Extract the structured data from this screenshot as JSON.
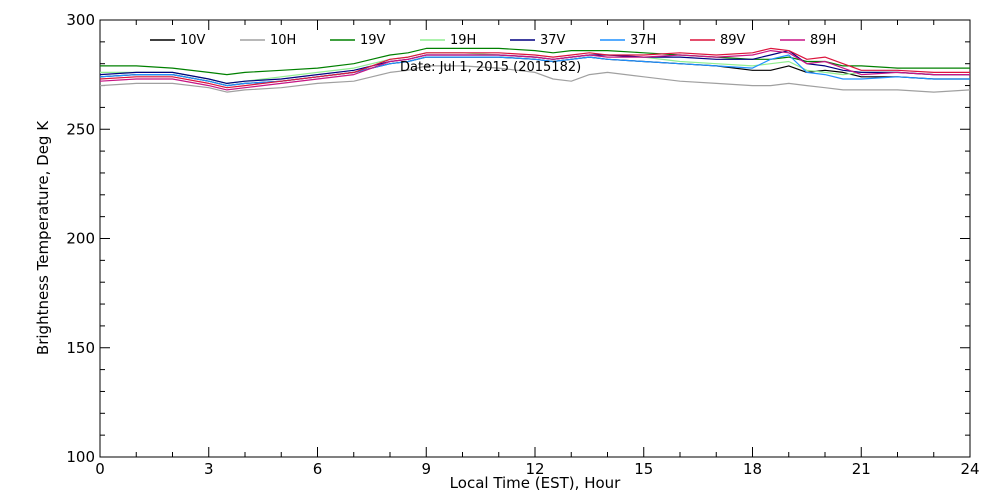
{
  "chart_data": {
    "type": "line",
    "title": "",
    "annotation": "Date: Jul  1, 2015 (2015182)",
    "xlabel": "Local Time (EST), Hour",
    "ylabel": "Brightness Temperature, Deg  K",
    "xlim": [
      0,
      24
    ],
    "ylim": [
      100,
      300
    ],
    "x_ticks": [
      0,
      3,
      6,
      9,
      12,
      15,
      18,
      21,
      24
    ],
    "y_ticks": [
      100,
      150,
      200,
      250,
      300
    ],
    "grid": false,
    "legend_position": "top",
    "x": [
      0,
      1,
      2,
      3,
      3.5,
      4,
      5,
      6,
      7,
      7.5,
      8,
      8.5,
      9,
      10,
      11,
      12,
      12.5,
      13,
      13.5,
      14,
      15,
      16,
      17,
      18,
      18.5,
      19,
      19.5,
      20,
      20.5,
      21,
      22,
      23,
      24
    ],
    "series": [
      {
        "name": "10V",
        "color": "#000000",
        "values": [
          274,
          275,
          275,
          272,
          270,
          271,
          272,
          274,
          276,
          278,
          280,
          281,
          283,
          283,
          283,
          282,
          281,
          282,
          283,
          282,
          281,
          280,
          279,
          277,
          277,
          279,
          276,
          277,
          276,
          274,
          274,
          273,
          273
        ]
      },
      {
        "name": "10H",
        "color": "#a0a0a0",
        "values": [
          270,
          271,
          271,
          269,
          267,
          268,
          269,
          271,
          272,
          274,
          276,
          277,
          279,
          279,
          278,
          276,
          273,
          272,
          275,
          276,
          274,
          272,
          271,
          270,
          270,
          271,
          270,
          269,
          268,
          268,
          268,
          267,
          268
        ]
      },
      {
        "name": "19V",
        "color": "#008000",
        "values": [
          279,
          279,
          278,
          276,
          275,
          276,
          277,
          278,
          280,
          282,
          284,
          285,
          287,
          287,
          287,
          286,
          285,
          286,
          286,
          286,
          285,
          284,
          283,
          282,
          282,
          283,
          281,
          281,
          279,
          279,
          278,
          278,
          278
        ]
      },
      {
        "name": "19H",
        "color": "#90ee90",
        "values": [
          276,
          276,
          276,
          273,
          271,
          272,
          274,
          276,
          278,
          280,
          282,
          283,
          285,
          285,
          284,
          283,
          282,
          283,
          284,
          284,
          283,
          281,
          280,
          279,
          280,
          281,
          277,
          276,
          275,
          276,
          276,
          275,
          275
        ]
      },
      {
        "name": "37V",
        "color": "#000080",
        "values": [
          275,
          276,
          276,
          273,
          271,
          272,
          273,
          275,
          277,
          279,
          281,
          282,
          284,
          284,
          284,
          283,
          282,
          283,
          284,
          284,
          283,
          283,
          282,
          282,
          284,
          286,
          280,
          279,
          277,
          276,
          276,
          275,
          275
        ]
      },
      {
        "name": "37H",
        "color": "#1e90ff",
        "values": [
          274,
          275,
          275,
          272,
          270,
          271,
          272,
          274,
          276,
          278,
          280,
          281,
          283,
          283,
          283,
          282,
          281,
          282,
          283,
          282,
          281,
          280,
          279,
          278,
          282,
          284,
          276,
          275,
          273,
          273,
          274,
          273,
          273
        ]
      },
      {
        "name": "89V",
        "color": "#dc143c",
        "values": [
          273,
          274,
          274,
          271,
          269,
          270,
          272,
          274,
          276,
          279,
          282,
          283,
          285,
          285,
          285,
          284,
          283,
          284,
          285,
          284,
          284,
          285,
          284,
          285,
          287,
          286,
          282,
          283,
          280,
          277,
          277,
          276,
          276
        ]
      },
      {
        "name": "89H",
        "color": "#c71585",
        "values": [
          272,
          273,
          273,
          270,
          268,
          269,
          271,
          273,
          275,
          278,
          281,
          282,
          284,
          284,
          284,
          283,
          282,
          283,
          284,
          283,
          283,
          284,
          283,
          284,
          286,
          285,
          280,
          281,
          278,
          275,
          276,
          275,
          275
        ]
      }
    ]
  }
}
